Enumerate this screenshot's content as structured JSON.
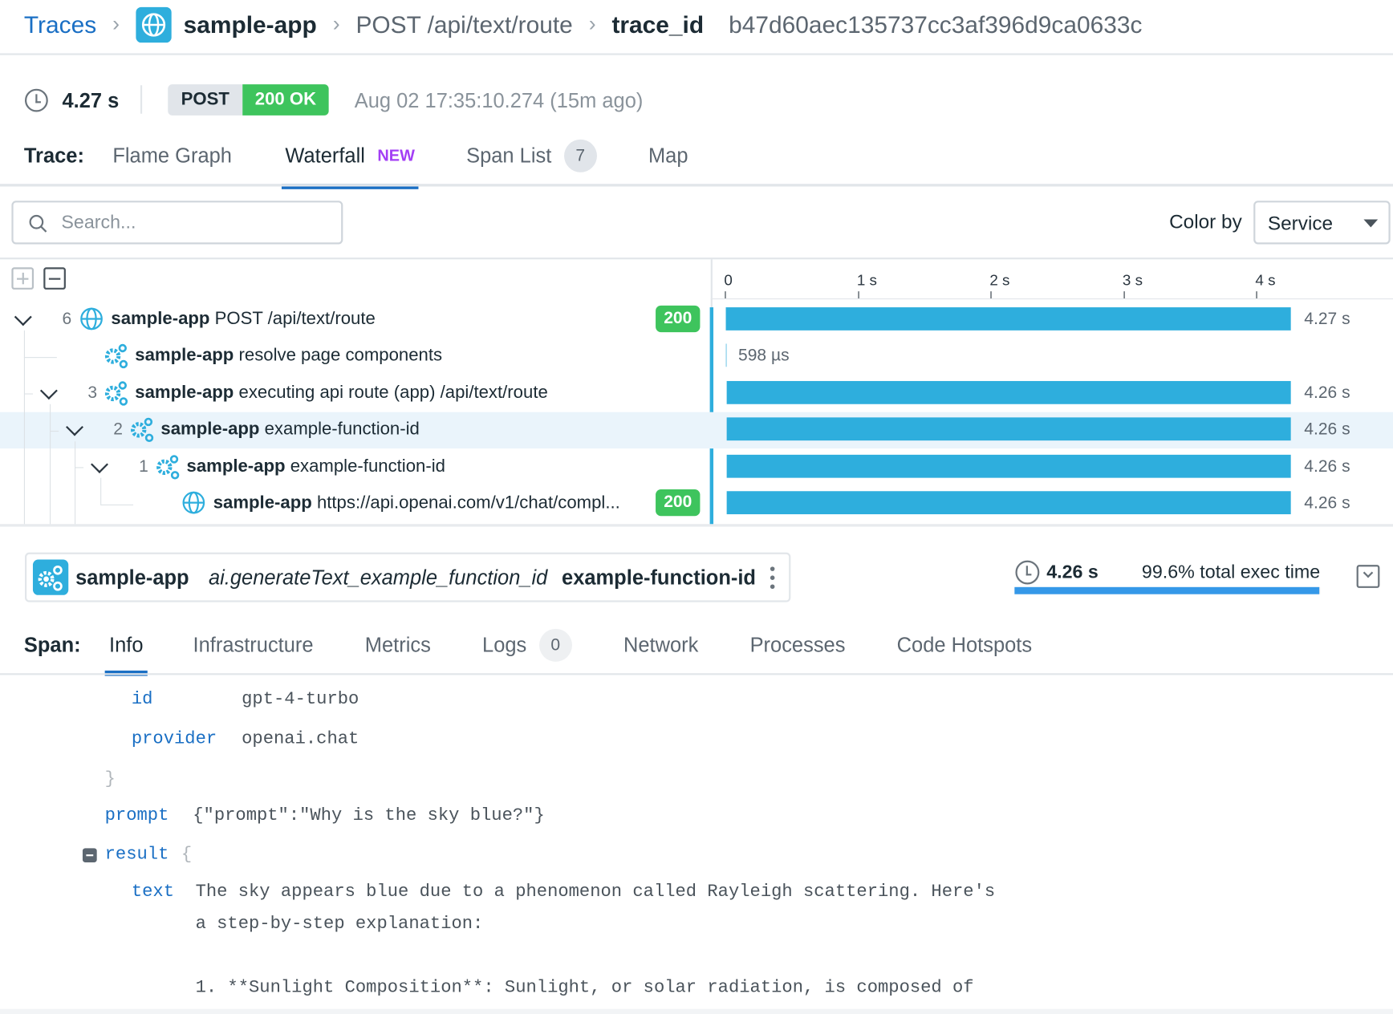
{
  "breadcrumb": {
    "root": "Traces",
    "service": "sample-app",
    "resource": "POST /api/text/route",
    "trace_id_label": "trace_id",
    "trace_id": "b47d60aec135737cc3af396d9ca0633c"
  },
  "summary": {
    "duration": "4.27 s",
    "method": "POST",
    "status": "200 OK",
    "timestamp": "Aug 02 17:35:10.274 (15m ago)"
  },
  "trace_tabs": {
    "label": "Trace:",
    "items": [
      {
        "label": "Flame Graph"
      },
      {
        "label": "Waterfall",
        "badge": "NEW",
        "active": true
      },
      {
        "label": "Span List",
        "count": "7"
      },
      {
        "label": "Map"
      }
    ]
  },
  "toolbar": {
    "search_placeholder": "Search...",
    "color_by_label": "Color by",
    "color_by_value": "Service"
  },
  "timeline": {
    "ticks": [
      "0",
      "1 s",
      "2 s",
      "3 s",
      "4 s"
    ],
    "max_seconds": 4.27
  },
  "spans": [
    {
      "count": "6",
      "service": "sample-app",
      "name": "POST /api/text/route",
      "status": "200",
      "duration": "4.27 s",
      "start": 0,
      "seconds": 4.27,
      "icon": "globe-icon",
      "depth": 0,
      "expanded": true
    },
    {
      "count": "",
      "service": "sample-app",
      "name": "resolve page components",
      "status": "",
      "duration": "598 µs",
      "start": 0,
      "seconds": 0.000598,
      "icon": "gears-icon",
      "depth": 1
    },
    {
      "count": "3",
      "service": "sample-app",
      "name": "executing api route (app) /api/text/route",
      "status": "",
      "duration": "4.26 s",
      "start": 0.01,
      "seconds": 4.26,
      "icon": "gears-icon",
      "depth": 1,
      "expanded": true
    },
    {
      "count": "2",
      "service": "sample-app",
      "name": "example-function-id",
      "status": "",
      "duration": "4.26 s",
      "start": 0.01,
      "seconds": 4.26,
      "icon": "gears-icon",
      "depth": 2,
      "expanded": true,
      "selected": true
    },
    {
      "count": "1",
      "service": "sample-app",
      "name": "example-function-id",
      "status": "",
      "duration": "4.26 s",
      "start": 0.01,
      "seconds": 4.26,
      "icon": "gears-icon",
      "depth": 3,
      "expanded": true
    },
    {
      "count": "",
      "service": "sample-app",
      "name": "https://api.openai.com/v1/chat/compl...",
      "status": "200",
      "duration": "4.26 s",
      "start": 0.01,
      "seconds": 4.255,
      "icon": "globe-icon",
      "depth": 4
    }
  ],
  "span_detail": {
    "service": "sample-app",
    "operation": "ai.generateText_example_function_id",
    "resource": "example-function-id",
    "duration": "4.26 s",
    "exec_time": "99.6% total exec time",
    "exec_fraction": 0.996
  },
  "span_tabs": {
    "label": "Span:",
    "items": [
      {
        "label": "Info",
        "active": true
      },
      {
        "label": "Infrastructure"
      },
      {
        "label": "Metrics"
      },
      {
        "label": "Logs",
        "count": "0"
      },
      {
        "label": "Network"
      },
      {
        "label": "Processes"
      },
      {
        "label": "Code Hotspots"
      }
    ]
  },
  "attributes": {
    "id_key": "id",
    "id_value": "gpt-4-turbo",
    "provider_key": "provider",
    "provider_value": "openai.chat",
    "close_brace": "}",
    "prompt_key": "prompt",
    "prompt_value": "{\"prompt\":\"Why is the sky blue?\"}",
    "result_key": "result",
    "open_brace": "{",
    "text_key": "text",
    "text_line1": "The sky appears blue due to a phenomenon called Rayleigh scattering. Here's",
    "text_line2": "a step-by-step explanation:",
    "text_line3": "1. **Sunlight Composition**: Sunlight, or solar radiation, is composed of"
  },
  "colors": {
    "link": "#1a6fc4",
    "bar": "#2eaedd",
    "ok": "#3ec45d",
    "new": "#a33ef5",
    "tab_active": "#1a6fc4"
  }
}
